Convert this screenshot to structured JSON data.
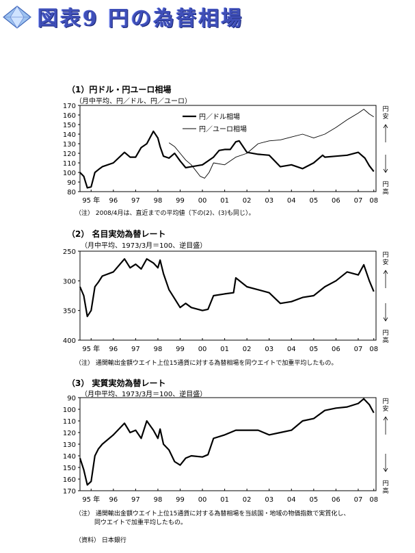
{
  "page": {
    "title": "図表9 円の為替相場"
  },
  "charts": [
    {
      "title": "（1）円ドル・円ユーロ相場",
      "subtitle": "（月中平均、円／ドル、円／ユーロ）",
      "note": "（注） 2008/4月は、直近までの平均値（下の(2)、(3)も同じ）。",
      "side_top": [
        "円",
        "安"
      ],
      "side_bottom": [
        "円",
        "高"
      ]
    },
    {
      "title": "（2） 名目実効為替レート",
      "subtitle": "（月中平均、1973/3月＝100、逆目盛）",
      "note": "（注） 通関輸出金額ウエイト上位15通貨に対する為替相場を同ウエイトで加重平均したもの。",
      "side_top": [
        "円",
        "安"
      ],
      "side_bottom": [
        "円",
        "高"
      ]
    },
    {
      "title": "（3） 実質実効為替レート",
      "subtitle": "（月中平均、1973/3月＝100、逆目盛）",
      "note_lines": [
        "（注） 通関輸出金額ウエイト上位15通貨に対する為替相場を当該国・地域の物価指数で実質化し、",
        "同ウエイトで加重平均したもの。"
      ],
      "side_top": [
        "円",
        "安"
      ],
      "side_bottom": [
        "円",
        "高"
      ]
    }
  ],
  "source": "（資料） 日本銀行",
  "chart_data": [
    {
      "type": "line",
      "x_unit": "year",
      "xlim": [
        1995.0,
        2008.3
      ],
      "x_ticks": [
        1995.5,
        1996.5,
        1997.5,
        1998.5,
        1999.5,
        2000.5,
        2001.5,
        2002.5,
        2003.5,
        2004.5,
        2005.5,
        2006.5,
        2007.5,
        2008.2
      ],
      "x_tick_labels": [
        "95 年",
        "96",
        "97",
        "98",
        "99",
        "00",
        "01",
        "02",
        "03",
        "04",
        "05",
        "06",
        "07",
        "08"
      ],
      "ylim": [
        80,
        170
      ],
      "y_ticks": [
        80,
        90,
        100,
        110,
        120,
        130,
        140,
        150,
        160,
        170
      ],
      "inverted": false,
      "legend_position": "top-left",
      "series": [
        {
          "name": "円／ドル相場",
          "style": "thick",
          "x": [
            1995.0,
            1995.17,
            1995.33,
            1995.5,
            1995.67,
            1995.83,
            1996.0,
            1996.5,
            1997.0,
            1997.25,
            1997.5,
            1997.75,
            1998.0,
            1998.3,
            1998.5,
            1998.6,
            1998.75,
            1999.0,
            1999.25,
            1999.5,
            1999.75,
            2000.0,
            2000.5,
            2001.0,
            2001.25,
            2001.5,
            2001.75,
            2002.0,
            2002.15,
            2002.5,
            2003.0,
            2003.5,
            2004.0,
            2004.5,
            2005.0,
            2005.5,
            2005.9,
            2006.0,
            2006.5,
            2007.0,
            2007.5,
            2007.8,
            2008.0,
            2008.2
          ],
          "y": [
            100,
            96,
            84,
            85,
            100,
            103,
            106,
            110,
            121,
            116,
            116,
            126,
            130,
            143,
            136,
            127,
            117,
            115,
            120,
            112,
            105,
            106,
            108,
            116,
            123,
            124,
            124,
            132,
            133,
            121,
            119,
            118,
            106,
            108,
            104,
            110,
            118,
            116,
            117,
            118,
            121,
            115,
            107,
            101
          ]
        },
        {
          "name": "円／ユーロ相場",
          "style": "thin",
          "x": [
            1999.0,
            1999.25,
            1999.5,
            1999.75,
            2000.0,
            2000.4,
            2000.6,
            2000.8,
            2001.0,
            2001.5,
            2002.0,
            2002.5,
            2003.0,
            2003.5,
            2004.0,
            2004.5,
            2005.0,
            2005.5,
            2006.0,
            2006.5,
            2007.0,
            2007.5,
            2007.75,
            2008.0,
            2008.2
          ],
          "y": [
            131,
            127,
            120,
            113,
            108,
            96,
            94,
            100,
            110,
            108,
            116,
            120,
            130,
            133,
            134,
            137,
            140,
            136,
            140,
            147,
            155,
            162,
            166,
            161,
            158
          ]
        }
      ]
    },
    {
      "type": "line",
      "x_unit": "year",
      "xlim": [
        1995.0,
        2008.3
      ],
      "x_ticks": [
        1995.5,
        1996.5,
        1997.5,
        1998.5,
        1999.5,
        2000.5,
        2001.5,
        2002.5,
        2003.5,
        2004.5,
        2005.5,
        2006.5,
        2007.5,
        2008.2
      ],
      "x_tick_labels": [
        "95 年",
        "96",
        "97",
        "98",
        "99",
        "00",
        "01",
        "02",
        "03",
        "04",
        "05",
        "06",
        "07",
        "08"
      ],
      "ylim": [
        250,
        400
      ],
      "y_ticks": [
        250,
        300,
        350,
        400
      ],
      "inverted": true,
      "series": [
        {
          "x": [
            1995.0,
            1995.17,
            1995.33,
            1995.5,
            1995.67,
            1995.83,
            1996.0,
            1996.5,
            1997.0,
            1997.25,
            1997.5,
            1997.75,
            1998.0,
            1998.3,
            1998.5,
            1998.6,
            1998.75,
            1999.0,
            1999.25,
            1999.5,
            1999.75,
            2000.0,
            2000.5,
            2000.75,
            2001.0,
            2001.5,
            2001.9,
            2002.0,
            2002.5,
            2003.0,
            2003.5,
            2004.0,
            2004.5,
            2005.0,
            2005.5,
            2006.0,
            2006.5,
            2007.0,
            2007.5,
            2007.75,
            2008.0,
            2008.2
          ],
          "y": [
            310,
            325,
            360,
            350,
            310,
            302,
            292,
            285,
            263,
            278,
            272,
            280,
            263,
            270,
            278,
            265,
            288,
            315,
            330,
            345,
            338,
            345,
            350,
            348,
            325,
            322,
            320,
            295,
            310,
            315,
            320,
            338,
            335,
            328,
            325,
            310,
            300,
            285,
            290,
            273,
            300,
            318
          ]
        }
      ]
    },
    {
      "type": "line",
      "x_unit": "year",
      "xlim": [
        1995.0,
        2008.3
      ],
      "x_ticks": [
        1995.5,
        1996.5,
        1997.5,
        1998.5,
        1999.5,
        2000.5,
        2001.5,
        2002.5,
        2003.5,
        2004.5,
        2005.5,
        2006.5,
        2007.5,
        2008.2
      ],
      "x_tick_labels": [
        "95 年",
        "96",
        "97",
        "98",
        "99",
        "00",
        "01",
        "02",
        "03",
        "04",
        "05",
        "06",
        "07",
        "08"
      ],
      "ylim": [
        90,
        170
      ],
      "y_ticks": [
        90,
        100,
        110,
        120,
        130,
        140,
        150,
        160,
        170
      ],
      "inverted": true,
      "series": [
        {
          "x": [
            1995.0,
            1995.17,
            1995.33,
            1995.5,
            1995.67,
            1995.83,
            1996.0,
            1996.5,
            1997.0,
            1997.25,
            1997.5,
            1997.75,
            1998.0,
            1998.3,
            1998.5,
            1998.6,
            1998.75,
            1999.0,
            1999.25,
            1999.5,
            1999.75,
            2000.0,
            2000.5,
            2000.75,
            2001.0,
            2001.5,
            2002.0,
            2002.5,
            2003.0,
            2003.5,
            2004.0,
            2004.5,
            2005.0,
            2005.5,
            2006.0,
            2006.5,
            2007.0,
            2007.5,
            2007.75,
            2008.0,
            2008.2
          ],
          "y": [
            142,
            152,
            165,
            162,
            140,
            134,
            130,
            122,
            112,
            120,
            118,
            125,
            110,
            118,
            125,
            117,
            130,
            135,
            145,
            148,
            142,
            140,
            141,
            139,
            125,
            122,
            118,
            118,
            118,
            122,
            120,
            118,
            110,
            108,
            101,
            99,
            98,
            95,
            91,
            96,
            103
          ]
        }
      ]
    }
  ]
}
